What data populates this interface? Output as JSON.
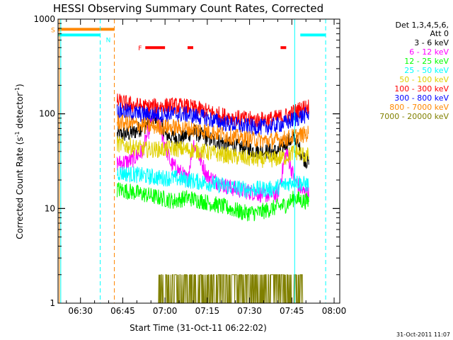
{
  "chart_data": {
    "type": "line",
    "title": "HESSI Observing Summary Count Rates, Corrected",
    "xlabel": "Start Time (31-Oct-11 06:22:02)",
    "ylabel_main": "Corrected Count Rate (s",
    "ylabel_sup1": "-1",
    "ylabel_mid": " detector",
    "ylabel_sup2": "-1",
    "ylabel_end": ")",
    "yscale": "log",
    "ylim": [
      1,
      1000
    ],
    "xlim": [
      "06:22:02",
      "08:02:00"
    ],
    "x_ticks": [
      "06:30",
      "06:45",
      "07:00",
      "07:15",
      "07:30",
      "07:45",
      "08:00"
    ],
    "y_ticks": [
      "1",
      "10",
      "100",
      "1000"
    ],
    "legend": {
      "placement": "right",
      "header": [
        "Det 1,3,4,5,6,",
        "Att 0"
      ],
      "entries": [
        {
          "label": "3 - 6 keV",
          "color": "#000000"
        },
        {
          "label": "6 - 12 keV",
          "color": "#ff00ff"
        },
        {
          "label": "12 - 25 keV",
          "color": "#00ff00"
        },
        {
          "label": "25 - 50 keV",
          "color": "#00ffff"
        },
        {
          "label": "50 - 100 keV",
          "color": "#e0d000"
        },
        {
          "label": "100 - 300 keV",
          "color": "#ff0000"
        },
        {
          "label": "300 - 800 keV",
          "color": "#0000ff"
        },
        {
          "label": "800 - 7000 keV",
          "color": "#ff8800"
        },
        {
          "label": "7000 - 20000 keV",
          "color": "#808000"
        }
      ]
    },
    "flags": [
      {
        "label": "S",
        "color": "#ff8800",
        "level": 780,
        "start": "06:22",
        "end": "06:42"
      },
      {
        "label": "N",
        "color": "#00ffff",
        "level": 680,
        "start": "06:22",
        "end": "06:37",
        "start2": "07:48",
        "end2": "07:57"
      },
      {
        "label": "F",
        "color": "#ff0000",
        "level": 500,
        "segments": [
          [
            "06:53",
            "07:00"
          ],
          [
            "07:08",
            "07:10"
          ],
          [
            "07:41",
            "07:43"
          ]
        ]
      }
    ],
    "vlines": [
      {
        "time": "06:22:30",
        "color": "#ff8800",
        "style": "solid"
      },
      {
        "time": "06:23:00",
        "color": "#00ffff",
        "style": "solid"
      },
      {
        "time": "06:37:00",
        "color": "#00ffff",
        "style": "dashed"
      },
      {
        "time": "06:42:00",
        "color": "#ff8800",
        "style": "dashed"
      },
      {
        "time": "07:46:00",
        "color": "#00ffff",
        "style": "solid"
      },
      {
        "time": "07:57:00",
        "color": "#00ffff",
        "style": "dashed"
      }
    ],
    "data_window": [
      "06:43",
      "07:51"
    ],
    "series": [
      {
        "name": "3 - 6 keV",
        "color": "#000000",
        "x": [
          "06:43",
          "06:48",
          "06:53",
          "06:57",
          "07:00",
          "07:05",
          "07:08",
          "07:10",
          "07:15",
          "07:20",
          "07:25",
          "07:30",
          "07:35",
          "07:40",
          "07:43",
          "07:46",
          "07:49",
          "07:51"
        ],
        "y": [
          60,
          62,
          75,
          95,
          60,
          55,
          60,
          65,
          55,
          50,
          45,
          42,
          40,
          40,
          50,
          55,
          35,
          30
        ]
      },
      {
        "name": "6 - 12 keV",
        "color": "#ff00ff",
        "x": [
          "06:43",
          "06:48",
          "06:52",
          "06:55",
          "06:57",
          "06:59",
          "07:02",
          "07:05",
          "07:08",
          "07:10",
          "07:15",
          "07:20",
          "07:25",
          "07:30",
          "07:35",
          "07:40",
          "07:43",
          "07:46",
          "07:49",
          "07:51"
        ],
        "y": [
          30,
          32,
          40,
          80,
          100,
          60,
          30,
          25,
          20,
          50,
          22,
          18,
          16,
          15,
          14,
          14,
          40,
          20,
          15,
          14
        ]
      },
      {
        "name": "12 - 25 keV",
        "color": "#00ff00",
        "x": [
          "06:43",
          "06:48",
          "06:53",
          "06:58",
          "07:03",
          "07:08",
          "07:13",
          "07:18",
          "07:23",
          "07:28",
          "07:33",
          "07:38",
          "07:43",
          "07:46",
          "07:49",
          "07:51"
        ],
        "y": [
          16,
          15,
          14,
          13,
          12,
          13,
          12,
          11,
          10,
          9,
          9,
          10,
          11,
          13,
          12,
          12
        ]
      },
      {
        "name": "25 - 50 keV",
        "color": "#00ffff",
        "x": [
          "06:43",
          "06:48",
          "06:53",
          "06:58",
          "07:03",
          "07:08",
          "07:13",
          "07:18",
          "07:23",
          "07:28",
          "07:33",
          "07:38",
          "07:43",
          "07:46",
          "07:49",
          "07:51"
        ],
        "y": [
          24,
          23,
          22,
          21,
          21,
          20,
          19,
          18,
          17,
          16,
          16,
          16,
          18,
          20,
          18,
          18
        ]
      },
      {
        "name": "50 - 100 keV",
        "color": "#e0d000",
        "x": [
          "06:43",
          "06:48",
          "06:53",
          "06:58",
          "07:03",
          "07:08",
          "07:13",
          "07:18",
          "07:23",
          "07:28",
          "07:33",
          "07:38",
          "07:43",
          "07:46",
          "07:49",
          "07:51"
        ],
        "y": [
          48,
          45,
          42,
          42,
          43,
          42,
          40,
          38,
          36,
          34,
          33,
          33,
          35,
          40,
          37,
          36
        ]
      },
      {
        "name": "100 - 300 keV",
        "color": "#ff0000",
        "x": [
          "06:43",
          "06:48",
          "06:53",
          "06:58",
          "07:03",
          "07:08",
          "07:13",
          "07:18",
          "07:23",
          "07:28",
          "07:33",
          "07:38",
          "07:43",
          "07:46",
          "07:49",
          "07:51"
        ],
        "y": [
          135,
          125,
          118,
          120,
          122,
          118,
          110,
          100,
          92,
          88,
          86,
          88,
          95,
          105,
          115,
          120
        ]
      },
      {
        "name": "300 - 800 keV",
        "color": "#0000ff",
        "x": [
          "06:43",
          "06:48",
          "06:53",
          "06:58",
          "07:03",
          "07:08",
          "07:13",
          "07:18",
          "07:23",
          "07:28",
          "07:33",
          "07:38",
          "07:43",
          "07:46",
          "07:49",
          "07:51"
        ],
        "y": [
          108,
          103,
          98,
          98,
          100,
          98,
          92,
          84,
          78,
          74,
          72,
          74,
          80,
          88,
          95,
          98
        ]
      },
      {
        "name": "800 - 7000 keV",
        "color": "#ff8800",
        "x": [
          "06:43",
          "06:48",
          "06:53",
          "06:58",
          "07:03",
          "07:08",
          "07:13",
          "07:18",
          "07:23",
          "07:28",
          "07:33",
          "07:38",
          "07:43",
          "07:46",
          "07:49",
          "07:51"
        ],
        "y": [
          82,
          78,
          75,
          73,
          72,
          70,
          67,
          63,
          58,
          55,
          53,
          52,
          55,
          58,
          60,
          62
        ]
      },
      {
        "name": "7000 - 20000 keV",
        "color": "#808000",
        "x": [
          "06:57",
          "07:00",
          "07:02",
          "07:04",
          "07:06",
          "07:08",
          "07:10",
          "07:41",
          "07:43",
          "07:45",
          "07:47",
          "07:49"
        ],
        "y": [
          2,
          2,
          1,
          2,
          2,
          1,
          2,
          2,
          1,
          2,
          2,
          2
        ]
      }
    ]
  },
  "timestamp": "31-Oct-2011 11:07"
}
